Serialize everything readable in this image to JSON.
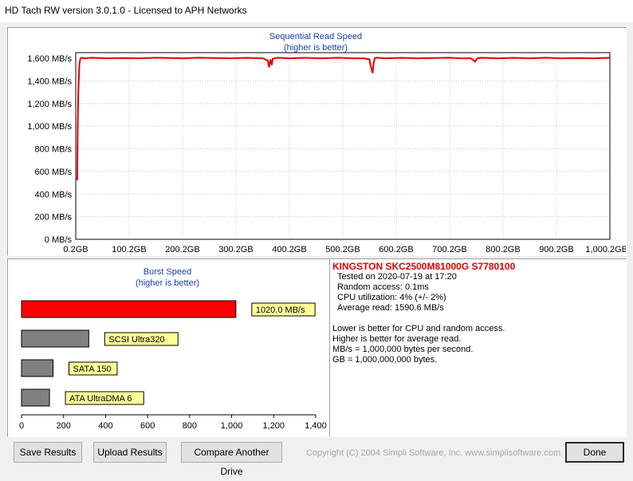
{
  "window": {
    "title": "HD Tach RW version 3.0.1.0 - Licensed to APH Networks"
  },
  "sequential": {
    "title": "Sequential Read Speed",
    "subtitle": "(higher is better)",
    "chart_data": {
      "type": "line",
      "title": "Sequential Read Speed",
      "subtitle": "(higher is better)",
      "ylim": [
        0,
        1650
      ],
      "xlim": [
        0.2,
        1000.2
      ],
      "yticks": [
        0,
        200,
        400,
        600,
        800,
        1000,
        1200,
        1400,
        1600
      ],
      "ytick_labels": [
        "0 MB/s",
        "200 MB/s",
        "400 MB/s",
        "600 MB/s",
        "800 MB/s",
        "1,000 MB/s",
        "1,200 MB/s",
        "1,400 MB/s",
        "1,600 MB/s"
      ],
      "xticks": [
        0.2,
        100.2,
        200.2,
        300.2,
        400.2,
        500.2,
        600.2,
        700.2,
        800.2,
        900.2,
        1000.2
      ],
      "xtick_labels": [
        "0.2GB",
        "100.2GB",
        "200.2GB",
        "300.2GB",
        "400.2GB",
        "500.2GB",
        "600.2GB",
        "700.2GB",
        "800.2GB",
        "900.2GB",
        "1,000.2GB"
      ],
      "grid": true,
      "line_color": "#e00000",
      "series": [
        {
          "x": [
            0.2,
            3,
            4,
            5,
            7,
            9,
            12,
            15,
            30,
            60,
            90,
            120,
            150,
            180,
            200,
            230,
            260,
            290,
            320,
            350,
            360,
            362,
            365,
            367,
            369,
            372,
            380,
            400,
            430,
            460,
            490,
            520,
            540,
            550,
            552,
            556,
            558,
            560,
            564,
            580,
            610,
            640,
            670,
            700,
            720,
            740,
            748,
            752,
            760,
            790,
            820,
            850,
            880,
            910,
            940,
            970,
            1000.2
          ],
          "y": [
            540,
            530,
            1000,
            1300,
            1550,
            1600,
            1605,
            1600,
            1605,
            1600,
            1603,
            1600,
            1605,
            1602,
            1600,
            1605,
            1603,
            1600,
            1604,
            1600,
            1580,
            1520,
            1590,
            1540,
            1595,
            1600,
            1605,
            1600,
            1604,
            1600,
            1605,
            1600,
            1600,
            1590,
            1540,
            1470,
            1560,
            1600,
            1605,
            1600,
            1604,
            1600,
            1603,
            1605,
            1600,
            1600,
            1570,
            1600,
            1605,
            1600,
            1604,
            1600,
            1605,
            1600,
            1603,
            1600,
            1605
          ]
        }
      ]
    }
  },
  "burst": {
    "title": "Burst Speed",
    "subtitle": "(higher is better)",
    "chart_data": {
      "type": "bar",
      "orientation": "horizontal",
      "title": "Burst Speed",
      "subtitle": "(higher is better)",
      "xlim": [
        0,
        1400
      ],
      "xticks": [
        0,
        200,
        400,
        600,
        800,
        1000,
        1200,
        1400
      ],
      "xtick_labels": [
        "0",
        "200",
        "400",
        "600",
        "800",
        "1,000",
        "1,200",
        "1,400"
      ],
      "bars": [
        {
          "label": "1020.0 MB/s",
          "value": 1020,
          "color": "#ff0000"
        },
        {
          "label": "SCSI Ultra320",
          "value": 320,
          "color": "#808080"
        },
        {
          "label": "SATA 150",
          "value": 150,
          "color": "#808080"
        },
        {
          "label": "ATA UltraDMA 6",
          "value": 133,
          "color": "#808080"
        }
      ]
    }
  },
  "info": {
    "drive": "KINGSTON SKC2500M81000G S7780100",
    "tested": "Tested on 2020-07-19 at 17:20",
    "random_access": "Random access: 0.1ms",
    "cpu": "CPU utilization: 4% (+/- 2%)",
    "average": "Average read: 1590.6 MB/s",
    "notes": [
      "Lower is better for CPU and random access.",
      "Higher is better for average read.",
      "MB/s = 1,000,000 bytes per second.",
      "GB = 1,000,000,000 bytes."
    ]
  },
  "footer": {
    "save": "Save Results",
    "upload": "Upload Results",
    "compare": "Compare Another Drive",
    "copyright": "Copyright (C) 2004 Simpli Software, Inc. www.simplisoftware.com",
    "done": "Done"
  }
}
